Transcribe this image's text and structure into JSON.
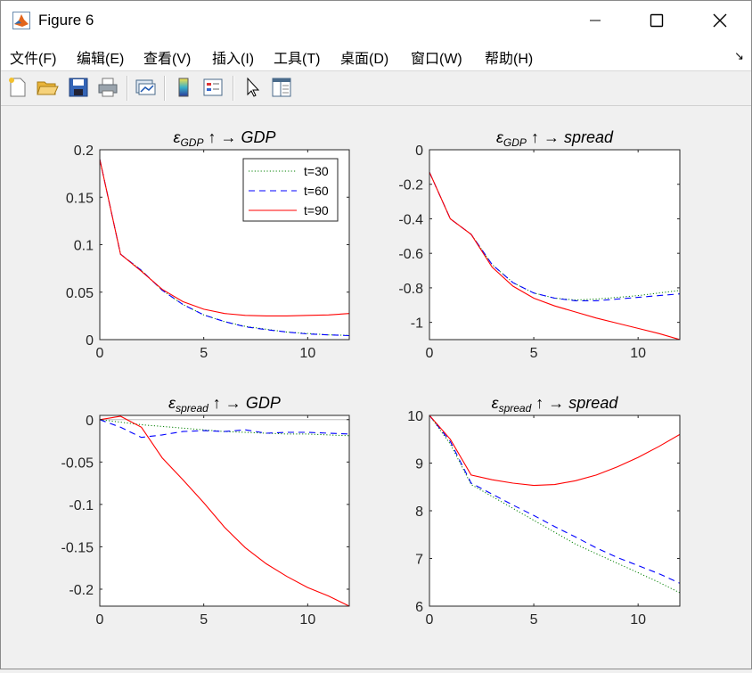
{
  "window": {
    "title": "Figure 6"
  },
  "menu": {
    "items": [
      "文件(F)",
      "编辑(E)",
      "查看(V)",
      "插入(I)",
      "工具(T)",
      "桌面(D)",
      "窗口(W)",
      "帮助(H)"
    ]
  },
  "toolbar": {
    "buttons": [
      "new-figure-icon",
      "open-file-icon",
      "save-icon",
      "print-icon",
      "link-plot-icon",
      "colorbar-icon",
      "legend-icon",
      "pointer-icon",
      "property-editor-icon"
    ]
  },
  "colors": {
    "t30": "#008000",
    "t60": "#0000ff",
    "t90": "#ff0000"
  },
  "chart_data": [
    {
      "type": "line",
      "title_parts": {
        "epsilon_sub": "GDP",
        "target": "GDP"
      },
      "xlim": [
        0,
        12
      ],
      "ylim": [
        0,
        0.2
      ],
      "xticks": [
        0,
        5,
        10
      ],
      "yticks": [
        0,
        0.05,
        0.1,
        0.15,
        0.2
      ],
      "ytick_labels": [
        "0",
        "0.05",
        "0.1",
        "0.15",
        "0.2"
      ],
      "legend": {
        "position": "top-right",
        "entries": [
          "t=30",
          "t=60",
          "t=90"
        ]
      },
      "x": [
        0,
        1,
        2,
        3,
        4,
        5,
        6,
        7,
        8,
        9,
        10,
        11,
        12
      ],
      "series": [
        {
          "name": "t=30",
          "style": "dotted",
          "values": [
            0.19,
            0.09,
            0.073,
            0.052,
            0.037,
            0.026,
            0.019,
            0.014,
            0.011,
            0.008,
            0.0065,
            0.005,
            0.0045
          ]
        },
        {
          "name": "t=60",
          "style": "dashed",
          "values": [
            0.19,
            0.09,
            0.073,
            0.052,
            0.037,
            0.026,
            0.019,
            0.0135,
            0.0105,
            0.008,
            0.006,
            0.005,
            0.0042
          ]
        },
        {
          "name": "t=90",
          "style": "solid",
          "values": [
            0.19,
            0.09,
            0.072,
            0.053,
            0.04,
            0.032,
            0.0275,
            0.0255,
            0.025,
            0.025,
            0.0255,
            0.026,
            0.0275
          ]
        }
      ]
    },
    {
      "type": "line",
      "title_parts": {
        "epsilon_sub": "GDP",
        "target": "spread"
      },
      "xlim": [
        0,
        12
      ],
      "ylim": [
        -1.1,
        0
      ],
      "xticks": [
        0,
        5,
        10
      ],
      "yticks": [
        0,
        -0.2,
        -0.4,
        -0.6,
        -0.8,
        -1
      ],
      "ytick_labels": [
        "0",
        "-0.2",
        "-0.4",
        "-0.6",
        "-0.8",
        "-1"
      ],
      "x": [
        0,
        1,
        2,
        3,
        4,
        5,
        6,
        7,
        8,
        9,
        10,
        11,
        12
      ],
      "series": [
        {
          "name": "t=30",
          "style": "dotted",
          "values": [
            -0.13,
            -0.4,
            -0.49,
            -0.665,
            -0.77,
            -0.83,
            -0.86,
            -0.87,
            -0.865,
            -0.855,
            -0.845,
            -0.83,
            -0.815
          ]
        },
        {
          "name": "t=60",
          "style": "dashed",
          "values": [
            -0.13,
            -0.4,
            -0.49,
            -0.665,
            -0.77,
            -0.83,
            -0.86,
            -0.875,
            -0.875,
            -0.865,
            -0.855,
            -0.845,
            -0.835
          ]
        },
        {
          "name": "t=90",
          "style": "solid",
          "values": [
            -0.13,
            -0.4,
            -0.49,
            -0.68,
            -0.79,
            -0.86,
            -0.905,
            -0.94,
            -0.975,
            -1.005,
            -1.035,
            -1.065,
            -1.1
          ]
        }
      ]
    },
    {
      "type": "line",
      "title_parts": {
        "epsilon_sub": "spread",
        "target": "GDP"
      },
      "xlim": [
        0,
        12
      ],
      "ylim": [
        -0.22,
        0.005
      ],
      "xticks": [
        0,
        5,
        10
      ],
      "yticks": [
        0,
        -0.05,
        -0.1,
        -0.15,
        -0.2
      ],
      "ytick_labels": [
        "0",
        "-0.05",
        "-0.1",
        "-0.15",
        "-0.2"
      ],
      "zero_line": true,
      "x": [
        0,
        1,
        2,
        3,
        4,
        5,
        6,
        7,
        8,
        9,
        10,
        11,
        12
      ],
      "series": [
        {
          "name": "t=30",
          "style": "dotted",
          "values": [
            0,
            -0.003,
            -0.006,
            -0.008,
            -0.01,
            -0.012,
            -0.014,
            -0.015,
            -0.016,
            -0.017,
            -0.017,
            -0.018,
            -0.019
          ]
        },
        {
          "name": "t=60",
          "style": "dashed",
          "values": [
            0,
            -0.009,
            -0.021,
            -0.018,
            -0.014,
            -0.013,
            -0.014,
            -0.012,
            -0.016,
            -0.015,
            -0.015,
            -0.016,
            -0.017
          ]
        },
        {
          "name": "t=90",
          "style": "solid",
          "values": [
            0,
            0.004,
            -0.009,
            -0.045,
            -0.071,
            -0.098,
            -0.127,
            -0.151,
            -0.17,
            -0.185,
            -0.198,
            -0.208,
            -0.22
          ]
        }
      ]
    },
    {
      "type": "line",
      "title_parts": {
        "epsilon_sub": "spread",
        "target": "spread"
      },
      "xlim": [
        0,
        12
      ],
      "ylim": [
        6,
        10
      ],
      "xticks": [
        0,
        5,
        10
      ],
      "yticks": [
        6,
        7,
        8,
        9,
        10
      ],
      "ytick_labels": [
        "6",
        "7",
        "8",
        "9",
        "10"
      ],
      "x": [
        0,
        1,
        2,
        3,
        4,
        5,
        6,
        7,
        8,
        9,
        10,
        11,
        12
      ],
      "series": [
        {
          "name": "t=30",
          "style": "dotted",
          "values": [
            10,
            9.4,
            8.55,
            8.3,
            8.05,
            7.8,
            7.55,
            7.3,
            7.1,
            6.9,
            6.7,
            6.5,
            6.28
          ]
        },
        {
          "name": "t=60",
          "style": "dashed",
          "values": [
            10,
            9.45,
            8.58,
            8.35,
            8.12,
            7.9,
            7.67,
            7.45,
            7.22,
            7.02,
            6.85,
            6.68,
            6.48
          ]
        },
        {
          "name": "t=90",
          "style": "solid",
          "values": [
            10,
            9.5,
            8.75,
            8.65,
            8.58,
            8.53,
            8.55,
            8.63,
            8.75,
            8.92,
            9.12,
            9.35,
            9.6
          ]
        }
      ]
    }
  ]
}
